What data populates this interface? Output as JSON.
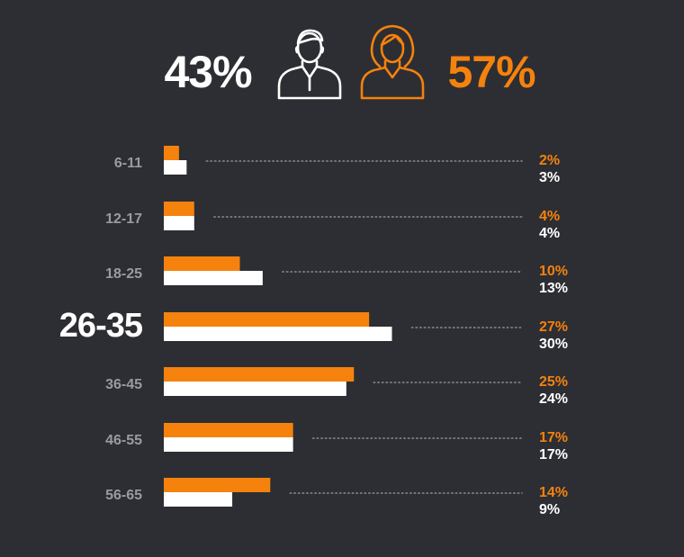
{
  "colors": {
    "background": "#2d2e33",
    "female": "#f5820d",
    "male": "#ffffff",
    "label": "#9a9ba0",
    "dots": "#8a8b90"
  },
  "header": {
    "male_pct": "43%",
    "female_pct": "57%",
    "male_icon": "man-avatar-icon",
    "female_icon": "woman-avatar-icon"
  },
  "chart_data": {
    "type": "bar",
    "orientation": "horizontal",
    "highlighted_category": "26-35",
    "categories": [
      "6-11",
      "12-17",
      "18-25",
      "26-35",
      "36-45",
      "46-55",
      "56-65"
    ],
    "series": [
      {
        "key": "female",
        "color": "#f5820d",
        "values": [
          2,
          4,
          10,
          27,
          25,
          17,
          14
        ],
        "labels": [
          "2%",
          "4%",
          "10%",
          "27%",
          "25%",
          "17%",
          "14%"
        ]
      },
      {
        "key": "male",
        "color": "#ffffff",
        "values": [
          3,
          4,
          13,
          30,
          24,
          17,
          9
        ],
        "labels": [
          "3%",
          "4%",
          "13%",
          "30%",
          "24%",
          "17%",
          "9%"
        ]
      }
    ],
    "xlim": [
      0,
      30
    ],
    "grid": false,
    "legend": "top (icons)"
  }
}
